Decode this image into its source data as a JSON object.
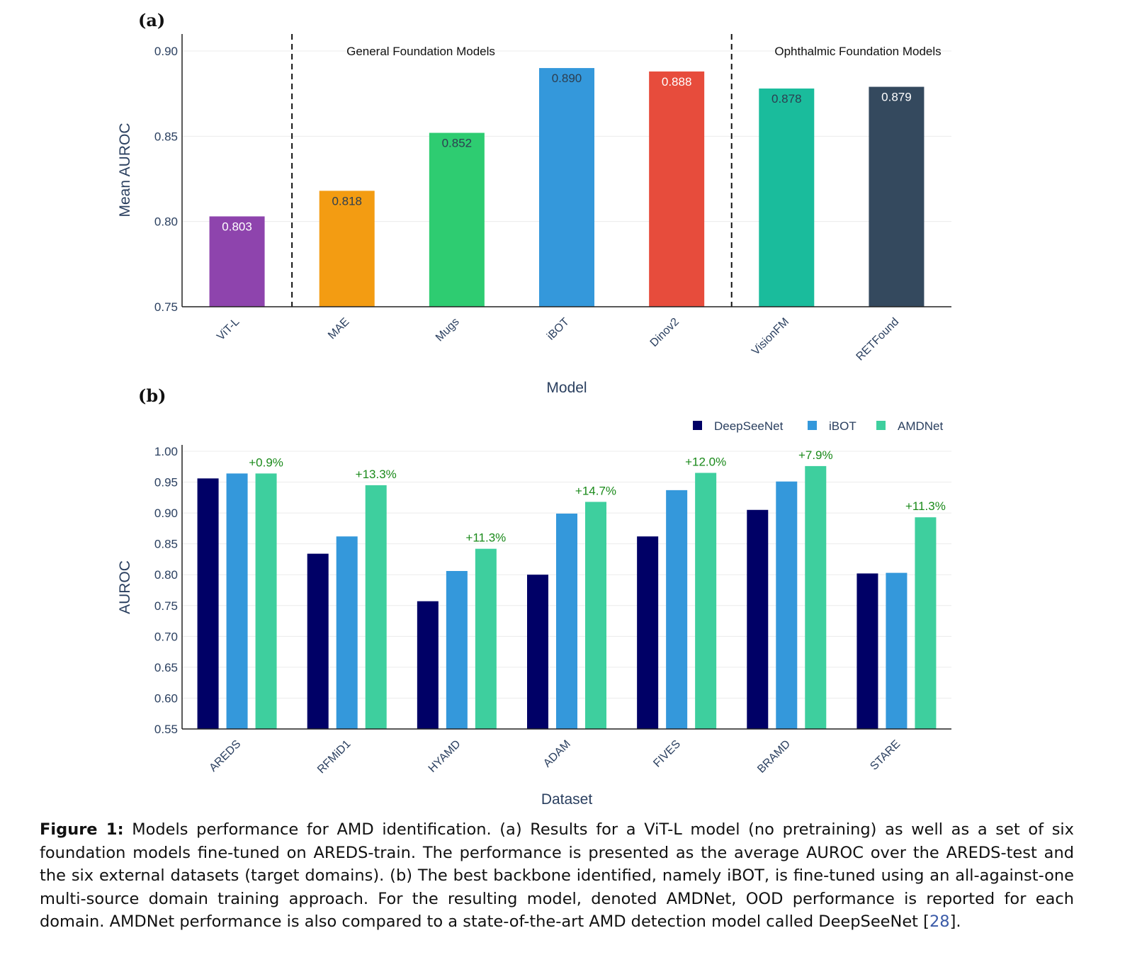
{
  "panel_a_label": "(a)",
  "panel_b_label": "(b)",
  "chart_data": [
    {
      "type": "bar",
      "panel": "(a)",
      "categories": [
        "ViT-L",
        "MAE",
        "Mugs",
        "iBOT",
        "Dinov2",
        "VisionFM",
        "RETFound"
      ],
      "values": [
        0.803,
        0.818,
        0.852,
        0.89,
        0.888,
        0.878,
        0.879
      ],
      "data_labels": [
        "0.803",
        "0.818",
        "0.852",
        "0.890",
        "0.888",
        "0.878",
        "0.879"
      ],
      "colors": [
        "#8e44ad",
        "#f39c12",
        "#2ecc71",
        "#3498db",
        "#e74c3c",
        "#1abc9c",
        "#34495e"
      ],
      "label_colors": [
        "#ffffff",
        "#2c3e50",
        "#2c3e50",
        "#2c3e50",
        "#ffffff",
        "#2c3e50",
        "#ffffff"
      ],
      "xlabel": "Model",
      "ylabel": "Mean AUROC",
      "ylim": [
        0.75,
        0.9
      ],
      "yticks": [
        "0.75",
        "0.80",
        "0.85",
        "0.90"
      ],
      "group_annotations": [
        "General Foundation Models",
        "Ophthalmic Foundation Models"
      ],
      "dividers_after_category": [
        0,
        4
      ],
      "grid": true
    },
    {
      "type": "bar",
      "panel": "(b)",
      "categories": [
        "AREDS",
        "RFMiD1",
        "HYAMD",
        "ADAM",
        "FIVES",
        "BRAMD",
        "STARE"
      ],
      "series": [
        {
          "name": "DeepSeeNet",
          "color": "#000066",
          "values": [
            0.956,
            0.834,
            0.757,
            0.8,
            0.862,
            0.905,
            0.802
          ]
        },
        {
          "name": "iBOT",
          "color": "#3498db",
          "values": [
            0.964,
            0.862,
            0.806,
            0.899,
            0.937,
            0.951,
            0.803
          ]
        },
        {
          "name": "AMDNet",
          "color": "#3ecf9e",
          "values": [
            0.964,
            0.945,
            0.842,
            0.918,
            0.965,
            0.976,
            0.893
          ]
        }
      ],
      "improvement_labels": [
        "+0.9%",
        "+13.3%",
        "+11.3%",
        "+14.7%",
        "+12.0%",
        "+7.9%",
        "+11.3%"
      ],
      "improvement_color": "#1a8a1a",
      "xlabel": "Dataset",
      "ylabel": "AUROC",
      "ylim": [
        0.55,
        1.0
      ],
      "yticks": [
        "0.55",
        "0.60",
        "0.65",
        "0.70",
        "0.75",
        "0.80",
        "0.85",
        "0.90",
        "0.95",
        "1.00"
      ],
      "legend_position": "top-right",
      "grid": true
    }
  ],
  "caption": {
    "label": "Figure 1:",
    "text": " Models performance for AMD identification. (a) Results for a ViT-L model (no pretraining) as well as a set of six foundation models fine-tuned on AREDS-train. The performance is presented as the average AUROC over the AREDS-test and the six external datasets (target domains). (b) The best backbone identified, namely iBOT, is fine-tuned using an all-against-one multi-source domain training approach. For the resulting model, denoted AMDNet, OOD performance is reported for each domain. AMDNet performance is also compared to a state-of-the-art AMD detection model called DeepSeeNet [",
    "ref": "28",
    "tail": "]."
  }
}
